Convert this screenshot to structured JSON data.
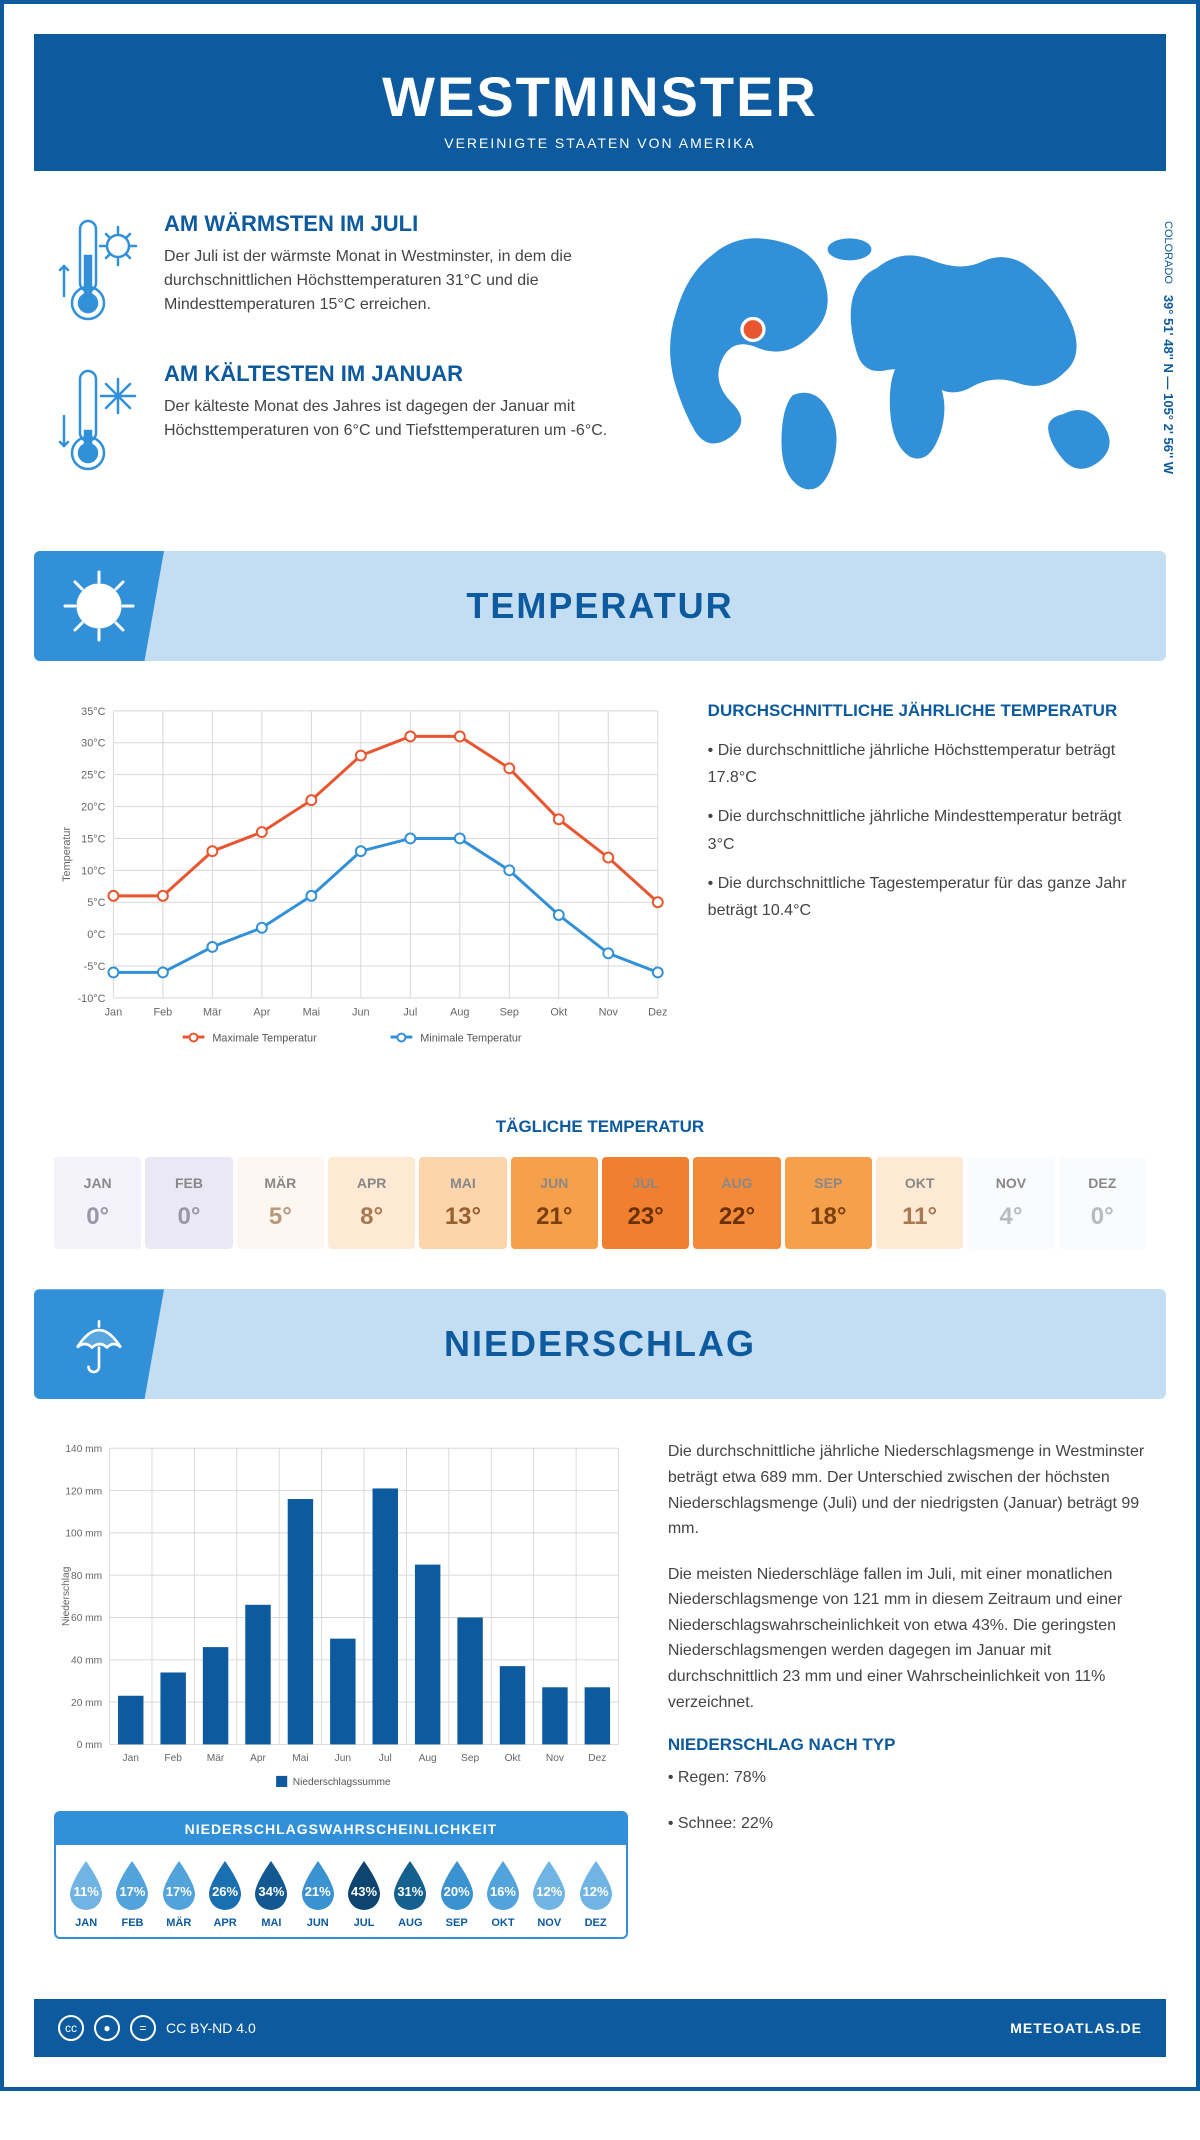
{
  "header": {
    "title": "WESTMINSTER",
    "subtitle": "VEREINIGTE STAATEN VON AMERIKA"
  },
  "location": {
    "coords": "39° 51' 48'' N — 105° 2' 56'' W",
    "state": "COLORADO",
    "marker_color": "#e8552f"
  },
  "facts": {
    "hot": {
      "title": "AM WÄRMSTEN IM JULI",
      "text": "Der Juli ist der wärmste Monat in Westminster, in dem die durchschnittlichen Höchsttemperaturen 31°C und die Mindesttemperaturen 15°C erreichen."
    },
    "cold": {
      "title": "AM KÄLTESTEN IM JANUAR",
      "text": "Der kälteste Monat des Jahres ist dagegen der Januar mit Höchsttemperaturen von 6°C und Tiefsttemperaturen um -6°C."
    }
  },
  "temperature_section": {
    "heading": "TEMPERATUR",
    "chart": {
      "type": "line",
      "months": [
        "Jan",
        "Feb",
        "Mär",
        "Apr",
        "Mai",
        "Jun",
        "Jul",
        "Aug",
        "Sep",
        "Okt",
        "Nov",
        "Dez"
      ],
      "max_series": {
        "label": "Maximale Temperatur",
        "color": "#e8552f",
        "values": [
          6,
          6,
          13,
          16,
          21,
          28,
          31,
          31,
          26,
          18,
          12,
          5
        ]
      },
      "min_series": {
        "label": "Minimale Temperatur",
        "color": "#3190d8",
        "values": [
          -6,
          -6,
          -2,
          1,
          6,
          13,
          15,
          15,
          10,
          3,
          -3,
          -6
        ]
      },
      "ylabel": "Temperatur",
      "ylim": [
        -10,
        35
      ],
      "ytick_step": 5,
      "grid_color": "#d8d8d8",
      "background": "#ffffff",
      "line_width": 3,
      "marker": "circle",
      "marker_size": 5
    },
    "info_title": "DURCHSCHNITTLICHE JÄHRLICHE TEMPERATUR",
    "bullets": [
      "• Die durchschnittliche jährliche Höchsttemperatur beträgt 17.8°C",
      "• Die durchschnittliche jährliche Mindesttemperatur beträgt 3°C",
      "• Die durchschnittliche Tagestemperatur für das ganze Jahr beträgt 10.4°C"
    ],
    "daily_title": "TÄGLICHE TEMPERATUR",
    "daily": {
      "months": [
        "JAN",
        "FEB",
        "MÄR",
        "APR",
        "MAI",
        "JUN",
        "JUL",
        "AUG",
        "SEP",
        "OKT",
        "NOV",
        "DEZ"
      ],
      "temps": [
        "0°",
        "0°",
        "5°",
        "8°",
        "13°",
        "21°",
        "23°",
        "22°",
        "18°",
        "11°",
        "4°",
        "0°"
      ],
      "bg_colors": [
        "#f4f2fa",
        "#ebe8f6",
        "#fdf7f1",
        "#fde9d4",
        "#fdd5ac",
        "#f7a04c",
        "#f08030",
        "#f28a3a",
        "#f7a04c",
        "#fde9d4",
        "#fafbfc",
        "#fafbfc"
      ],
      "text_colors": [
        "#9a98a8",
        "#9a98a8",
        "#b89878",
        "#a87850",
        "#986030",
        "#7a4010",
        "#6a3000",
        "#6a3000",
        "#7a4010",
        "#a87850",
        "#b8bac0",
        "#b8bac0"
      ]
    }
  },
  "precip_section": {
    "heading": "NIEDERSCHLAG",
    "chart": {
      "type": "bar",
      "months": [
        "Jan",
        "Feb",
        "Mär",
        "Apr",
        "Mai",
        "Jun",
        "Jul",
        "Aug",
        "Sep",
        "Okt",
        "Nov",
        "Dez"
      ],
      "values": [
        23,
        34,
        46,
        66,
        116,
        50,
        121,
        85,
        60,
        37,
        27,
        27
      ],
      "ylabel": "Niederschlag",
      "ylim": [
        0,
        140
      ],
      "ytick_step": 20,
      "bar_color": "#0d5a9e",
      "grid_color": "#d8d8d8",
      "legend": "Niederschlagssumme"
    },
    "text1": "Die durchschnittliche jährliche Niederschlagsmenge in Westminster beträgt etwa 689 mm. Der Unterschied zwischen der höchsten Niederschlagsmenge (Juli) und der niedrigsten (Januar) beträgt 99 mm.",
    "text2": "Die meisten Niederschläge fallen im Juli, mit einer monatlichen Niederschlagsmenge von 121 mm in diesem Zeitraum und einer Niederschlagswahrscheinlichkeit von etwa 43%. Die geringsten Niederschlagsmengen werden dagegen im Januar mit durchschnittlich 23 mm und einer Wahrscheinlichkeit von 11% verzeichnet.",
    "type_title": "NIEDERSCHLAG NACH TYP",
    "type_bullets": [
      "• Regen: 78%",
      "• Schnee: 22%"
    ],
    "probability": {
      "title": "NIEDERSCHLAGSWAHRSCHEINLICHKEIT",
      "months": [
        "JAN",
        "FEB",
        "MÄR",
        "APR",
        "MAI",
        "JUN",
        "JUL",
        "AUG",
        "SEP",
        "OKT",
        "NOV",
        "DEZ"
      ],
      "values": [
        "11%",
        "17%",
        "17%",
        "26%",
        "34%",
        "21%",
        "43%",
        "31%",
        "20%",
        "16%",
        "12%",
        "12%"
      ],
      "colors": [
        "#6fb4e3",
        "#52a3dc",
        "#52a3dc",
        "#1a6fb0",
        "#135890",
        "#3a92d0",
        "#0d4570",
        "#14608f",
        "#3a92d0",
        "#52a3dc",
        "#6fb4e3",
        "#6fb4e3"
      ]
    }
  },
  "footer": {
    "license": "CC BY-ND 4.0",
    "site": "METEOATLAS.DE"
  },
  "colors": {
    "primary": "#0d5a9e",
    "light_blue": "#3190d8",
    "header_bg": "#c3ddf2"
  }
}
